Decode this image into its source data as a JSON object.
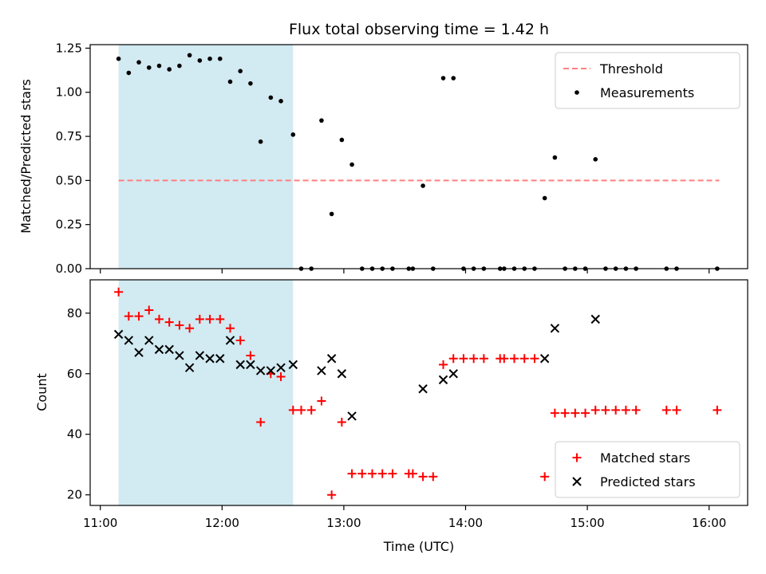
{
  "chart_data": {
    "type": "scatter",
    "title": "Flux total observing time = 1.42 h",
    "xlabel": "Time (UTC)",
    "x_ticks": [
      "11:00",
      "12:00",
      "13:00",
      "14:00",
      "15:00",
      "16:00"
    ],
    "xlim": [
      "10:55",
      "16:19"
    ],
    "shaded_interval": [
      "11:09",
      "12:35"
    ],
    "shade_color": "#add8e6",
    "panels": [
      {
        "ylabel": "Matched/Predicted stars",
        "ylim": [
          0,
          1.27
        ],
        "y_ticks": [
          "0.00",
          "0.25",
          "0.50",
          "0.75",
          "1.00",
          "1.25"
        ],
        "legend_position": "upper right",
        "threshold": {
          "name": "Threshold",
          "value": 0.5,
          "x_range": [
            "11:09",
            "16:05"
          ],
          "color": "#ff7f7f"
        },
        "series": [
          {
            "name": "Measurements",
            "color": "#000000",
            "marker": "dot",
            "points": [
              [
                "11:09",
                1.19
              ],
              [
                "11:14",
                1.11
              ],
              [
                "11:19",
                1.17
              ],
              [
                "11:24",
                1.14
              ],
              [
                "11:29",
                1.15
              ],
              [
                "11:34",
                1.13
              ],
              [
                "11:39",
                1.15
              ],
              [
                "11:44",
                1.21
              ],
              [
                "11:49",
                1.18
              ],
              [
                "11:54",
                1.19
              ],
              [
                "11:59",
                1.19
              ],
              [
                "12:04",
                1.06
              ],
              [
                "12:09",
                1.12
              ],
              [
                "12:14",
                1.05
              ],
              [
                "12:19",
                0.72
              ],
              [
                "12:24",
                0.97
              ],
              [
                "12:29",
                0.95
              ],
              [
                "12:35",
                0.76
              ],
              [
                "12:39",
                0.0
              ],
              [
                "12:44",
                0.0
              ],
              [
                "12:49",
                0.84
              ],
              [
                "12:54",
                0.31
              ],
              [
                "12:59",
                0.73
              ],
              [
                "13:04",
                0.59
              ],
              [
                "13:09",
                0.0
              ],
              [
                "13:14",
                0.0
              ],
              [
                "13:19",
                0.0
              ],
              [
                "13:24",
                0.0
              ],
              [
                "13:32",
                0.0
              ],
              [
                "13:34",
                0.0
              ],
              [
                "13:39",
                0.47
              ],
              [
                "13:44",
                0.0
              ],
              [
                "13:49",
                1.08
              ],
              [
                "13:54",
                1.08
              ],
              [
                "13:59",
                0.0
              ],
              [
                "14:04",
                0.0
              ],
              [
                "14:09",
                0.0
              ],
              [
                "14:17",
                0.0
              ],
              [
                "14:19",
                0.0
              ],
              [
                "14:24",
                0.0
              ],
              [
                "14:29",
                0.0
              ],
              [
                "14:34",
                0.0
              ],
              [
                "14:39",
                0.4
              ],
              [
                "14:44",
                0.63
              ],
              [
                "14:49",
                0.0
              ],
              [
                "14:54",
                0.0
              ],
              [
                "14:59",
                0.0
              ],
              [
                "15:04",
                0.62
              ],
              [
                "15:09",
                0.0
              ],
              [
                "15:14",
                0.0
              ],
              [
                "15:19",
                0.0
              ],
              [
                "15:24",
                0.0
              ],
              [
                "15:39",
                0.0
              ],
              [
                "15:44",
                0.0
              ],
              [
                "16:04",
                0.0
              ]
            ]
          }
        ]
      },
      {
        "ylabel": "Count",
        "ylim": [
          16.5,
          91
        ],
        "y_ticks": [
          "20",
          "40",
          "60",
          "80"
        ],
        "legend_position": "lower right",
        "series": [
          {
            "name": "Matched stars",
            "color": "#ff0000",
            "marker": "plus",
            "points": [
              [
                "11:09",
                87
              ],
              [
                "11:14",
                79
              ],
              [
                "11:19",
                79
              ],
              [
                "11:24",
                81
              ],
              [
                "11:29",
                78
              ],
              [
                "11:34",
                77
              ],
              [
                "11:39",
                76
              ],
              [
                "11:44",
                75
              ],
              [
                "11:49",
                78
              ],
              [
                "11:54",
                78
              ],
              [
                "11:59",
                78
              ],
              [
                "12:04",
                75
              ],
              [
                "12:09",
                71
              ],
              [
                "12:14",
                66
              ],
              [
                "12:19",
                44
              ],
              [
                "12:24",
                60
              ],
              [
                "12:29",
                59
              ],
              [
                "12:35",
                48
              ],
              [
                "12:39",
                48
              ],
              [
                "12:44",
                48
              ],
              [
                "12:49",
                51
              ],
              [
                "12:54",
                20
              ],
              [
                "12:59",
                44
              ],
              [
                "13:04",
                27
              ],
              [
                "13:09",
                27
              ],
              [
                "13:14",
                27
              ],
              [
                "13:19",
                27
              ],
              [
                "13:24",
                27
              ],
              [
                "13:32",
                27
              ],
              [
                "13:34",
                27
              ],
              [
                "13:39",
                26
              ],
              [
                "13:44",
                26
              ],
              [
                "13:49",
                63
              ],
              [
                "13:54",
                65
              ],
              [
                "13:59",
                65
              ],
              [
                "14:04",
                65
              ],
              [
                "14:09",
                65
              ],
              [
                "14:17",
                65
              ],
              [
                "14:19",
                65
              ],
              [
                "14:24",
                65
              ],
              [
                "14:29",
                65
              ],
              [
                "14:34",
                65
              ],
              [
                "14:39",
                26
              ],
              [
                "14:44",
                47
              ],
              [
                "14:49",
                47
              ],
              [
                "14:54",
                47
              ],
              [
                "14:59",
                47
              ],
              [
                "15:04",
                48
              ],
              [
                "15:09",
                48
              ],
              [
                "15:14",
                48
              ],
              [
                "15:19",
                48
              ],
              [
                "15:24",
                48
              ],
              [
                "15:39",
                48
              ],
              [
                "15:44",
                48
              ],
              [
                "16:04",
                48
              ]
            ]
          },
          {
            "name": "Predicted stars",
            "color": "#000000",
            "marker": "x",
            "points": [
              [
                "11:09",
                73
              ],
              [
                "11:14",
                71
              ],
              [
                "11:19",
                67
              ],
              [
                "11:24",
                71
              ],
              [
                "11:29",
                68
              ],
              [
                "11:34",
                68
              ],
              [
                "11:39",
                66
              ],
              [
                "11:44",
                62
              ],
              [
                "11:49",
                66
              ],
              [
                "11:54",
                65
              ],
              [
                "11:59",
                65
              ],
              [
                "12:04",
                71
              ],
              [
                "12:09",
                63
              ],
              [
                "12:14",
                63
              ],
              [
                "12:19",
                61
              ],
              [
                "12:24",
                61
              ],
              [
                "12:29",
                62
              ],
              [
                "12:35",
                63
              ],
              [
                "12:49",
                61
              ],
              [
                "12:54",
                65
              ],
              [
                "12:59",
                60
              ],
              [
                "13:04",
                46
              ],
              [
                "13:39",
                55
              ],
              [
                "13:49",
                58
              ],
              [
                "13:54",
                60
              ],
              [
                "14:39",
                65
              ],
              [
                "14:44",
                75
              ],
              [
                "15:04",
                78
              ]
            ]
          }
        ]
      }
    ]
  }
}
